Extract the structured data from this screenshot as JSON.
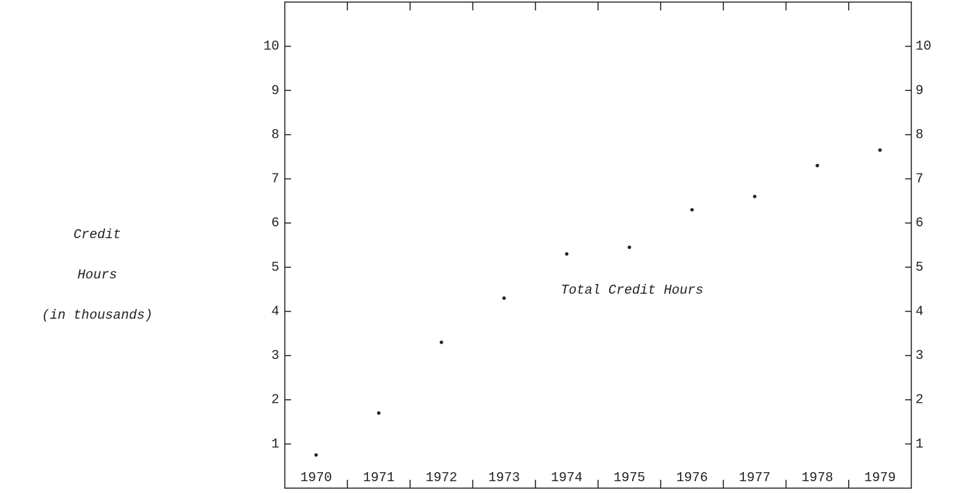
{
  "chart_data": {
    "type": "line",
    "ylabel": [
      "Credit",
      "Hours",
      "(in thousands)"
    ],
    "categories": [
      "1970",
      "1971",
      "1972",
      "1973",
      "1974",
      "1975",
      "1976",
      "1977",
      "1978",
      "1979"
    ],
    "series": [
      {
        "name": "Total Credit Hours",
        "color": "#222222",
        "values": [
          0.75,
          1.7,
          3.3,
          4.3,
          5.3,
          5.45,
          6.3,
          6.6,
          7.3,
          7.65
        ]
      }
    ],
    "ylim": [
      0,
      11
    ],
    "yticks": [
      1,
      2,
      3,
      4,
      5,
      6,
      7,
      8,
      9,
      10
    ],
    "grid": false
  }
}
